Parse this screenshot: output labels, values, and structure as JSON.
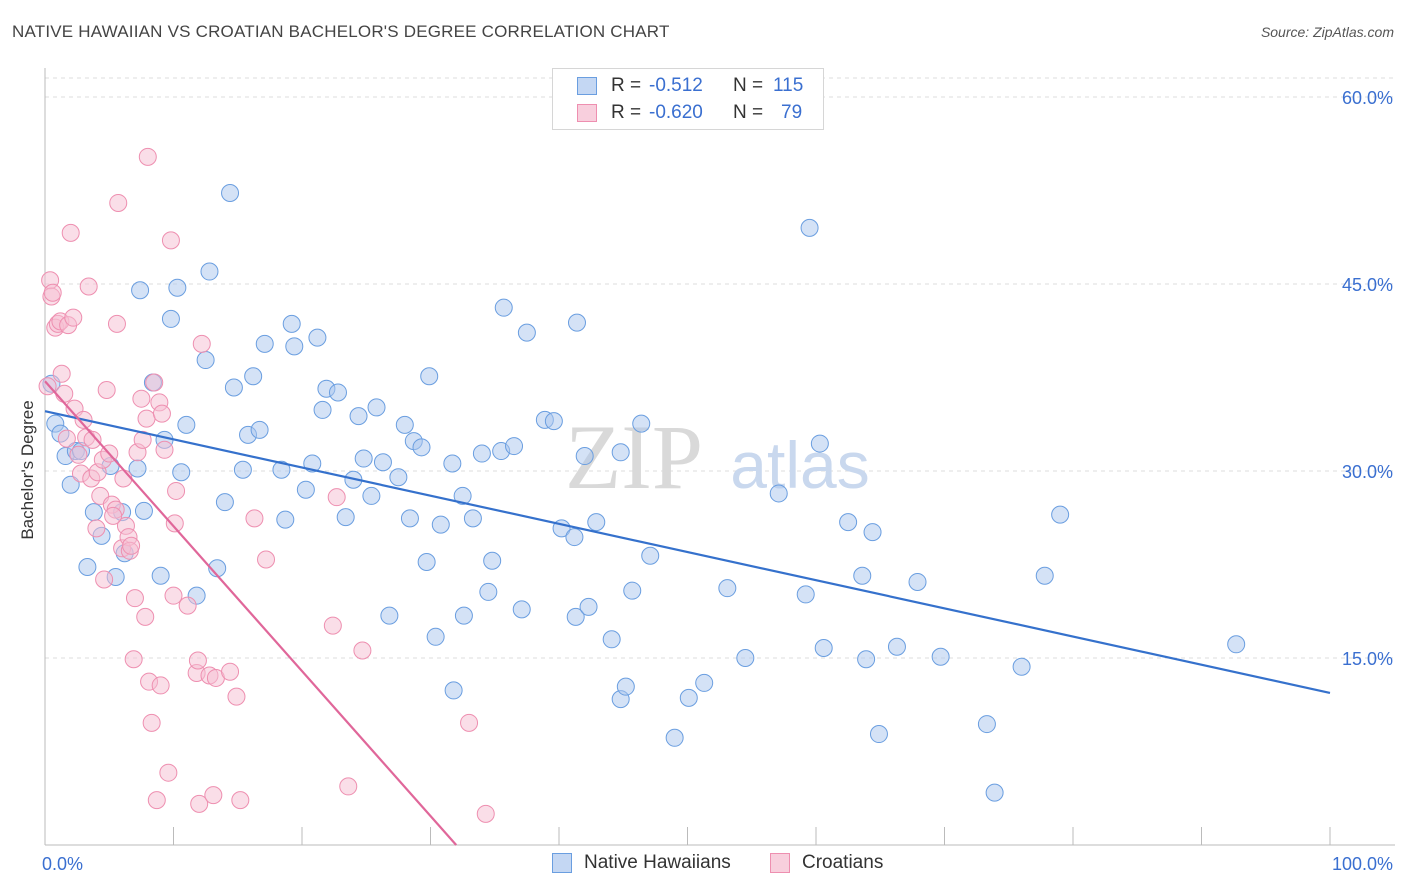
{
  "chart_data": {
    "type": "scatter",
    "title": "NATIVE HAWAIIAN VS CROATIAN BACHELOR'S DEGREE CORRELATION CHART",
    "source": "Source: ZipAtlas.com",
    "xlabel": "",
    "ylabel": "Bachelor's Degree",
    "xlim": [
      0,
      100
    ],
    "ylim": [
      0,
      60
    ],
    "x_tick_labels": [
      "0.0%",
      "100.0%"
    ],
    "y_ticks": [
      15,
      30,
      45,
      60
    ],
    "y_tick_labels": [
      "15.0%",
      "30.0%",
      "45.0%",
      "60.0%"
    ],
    "grid": true,
    "legend_position": "top-center",
    "watermark": "ZIPatlas",
    "series": [
      {
        "name": "Native Hawaiians",
        "color": "#6a9ee0",
        "fill": "#a9c6ee",
        "line_color": "#3571cc",
        "R": "-0.512",
        "N": "115",
        "trend": {
          "x0": 0,
          "y0": 34.8,
          "x1": 100,
          "y1": 12.2
        },
        "points": [
          [
            0.5,
            37.0
          ],
          [
            0.8,
            33.8
          ],
          [
            1.2,
            33.0
          ],
          [
            1.6,
            31.2
          ],
          [
            2.0,
            28.9
          ],
          [
            2.4,
            31.6
          ],
          [
            2.8,
            31.6
          ],
          [
            3.3,
            22.3
          ],
          [
            3.8,
            26.7
          ],
          [
            4.4,
            24.8
          ],
          [
            5.1,
            30.4
          ],
          [
            5.5,
            21.5
          ],
          [
            6.0,
            26.7
          ],
          [
            6.2,
            23.4
          ],
          [
            7.4,
            44.5
          ],
          [
            7.2,
            30.2
          ],
          [
            7.7,
            26.8
          ],
          [
            8.4,
            37.1
          ],
          [
            9.0,
            21.6
          ],
          [
            9.3,
            32.5
          ],
          [
            9.8,
            42.2
          ],
          [
            10.3,
            44.7
          ],
          [
            10.6,
            29.9
          ],
          [
            11.0,
            33.7
          ],
          [
            11.8,
            20.0
          ],
          [
            12.5,
            38.9
          ],
          [
            12.8,
            46.0
          ],
          [
            13.4,
            22.2
          ],
          [
            14.0,
            27.5
          ],
          [
            14.4,
            52.3
          ],
          [
            14.7,
            36.7
          ],
          [
            15.4,
            30.1
          ],
          [
            15.8,
            32.9
          ],
          [
            16.2,
            37.6
          ],
          [
            16.7,
            33.3
          ],
          [
            17.1,
            40.2
          ],
          [
            18.4,
            30.1
          ],
          [
            18.7,
            26.1
          ],
          [
            19.2,
            41.8
          ],
          [
            19.4,
            40.0
          ],
          [
            20.3,
            28.5
          ],
          [
            20.8,
            30.6
          ],
          [
            21.2,
            40.7
          ],
          [
            21.6,
            34.9
          ],
          [
            21.9,
            36.6
          ],
          [
            22.8,
            36.3
          ],
          [
            23.4,
            26.3
          ],
          [
            24.0,
            29.3
          ],
          [
            24.4,
            34.4
          ],
          [
            24.8,
            31.0
          ],
          [
            25.4,
            28.0
          ],
          [
            25.8,
            35.1
          ],
          [
            26.3,
            30.7
          ],
          [
            26.8,
            18.4
          ],
          [
            27.5,
            29.5
          ],
          [
            28.0,
            33.7
          ],
          [
            28.4,
            26.2
          ],
          [
            28.7,
            32.4
          ],
          [
            29.3,
            31.9
          ],
          [
            29.7,
            22.7
          ],
          [
            29.9,
            37.6
          ],
          [
            30.4,
            16.7
          ],
          [
            30.8,
            25.7
          ],
          [
            31.7,
            30.6
          ],
          [
            31.8,
            12.4
          ],
          [
            32.5,
            28.0
          ],
          [
            32.6,
            18.4
          ],
          [
            33.3,
            26.2
          ],
          [
            34.0,
            31.4
          ],
          [
            34.5,
            20.3
          ],
          [
            34.8,
            22.8
          ],
          [
            35.5,
            31.6
          ],
          [
            35.7,
            43.1
          ],
          [
            36.5,
            32.0
          ],
          [
            37.1,
            18.9
          ],
          [
            37.5,
            41.1
          ],
          [
            38.9,
            34.1
          ],
          [
            39.6,
            34.0
          ],
          [
            40.2,
            25.4
          ],
          [
            41.2,
            24.7
          ],
          [
            41.3,
            18.3
          ],
          [
            41.4,
            41.9
          ],
          [
            42.0,
            31.2
          ],
          [
            42.3,
            19.1
          ],
          [
            42.9,
            25.9
          ],
          [
            44.1,
            16.5
          ],
          [
            44.8,
            31.5
          ],
          [
            44.8,
            11.7
          ],
          [
            45.2,
            12.7
          ],
          [
            45.7,
            20.4
          ],
          [
            46.4,
            33.8
          ],
          [
            47.1,
            23.2
          ],
          [
            49.0,
            8.6
          ],
          [
            50.1,
            11.8
          ],
          [
            51.3,
            13.0
          ],
          [
            53.1,
            20.6
          ],
          [
            54.5,
            15.0
          ],
          [
            57.1,
            28.2
          ],
          [
            59.2,
            20.1
          ],
          [
            59.5,
            49.5
          ],
          [
            60.3,
            32.2
          ],
          [
            60.6,
            15.8
          ],
          [
            62.5,
            25.9
          ],
          [
            63.6,
            21.6
          ],
          [
            63.9,
            14.9
          ],
          [
            64.4,
            25.1
          ],
          [
            64.9,
            8.9
          ],
          [
            66.3,
            15.9
          ],
          [
            67.9,
            21.1
          ],
          [
            69.7,
            15.1
          ],
          [
            73.3,
            9.7
          ],
          [
            73.9,
            4.2
          ],
          [
            76.0,
            14.3
          ],
          [
            77.8,
            21.6
          ],
          [
            79.0,
            26.5
          ],
          [
            92.7,
            16.1
          ]
        ]
      },
      {
        "name": "Croatians",
        "color": "#ee8fb0",
        "fill": "#f6bdd1",
        "line_color": "#e0679a",
        "R": "-0.620",
        "N": "79",
        "trend": {
          "x0": 0,
          "y0": 37.2,
          "x1": 32,
          "y1": 0
        },
        "points": [
          [
            0.2,
            36.8
          ],
          [
            0.4,
            45.3
          ],
          [
            0.5,
            44.0
          ],
          [
            0.6,
            44.3
          ],
          [
            0.8,
            41.5
          ],
          [
            1.0,
            41.8
          ],
          [
            1.2,
            42.0
          ],
          [
            1.3,
            37.8
          ],
          [
            1.5,
            36.2
          ],
          [
            1.8,
            41.7
          ],
          [
            2.0,
            49.1
          ],
          [
            2.2,
            42.3
          ],
          [
            2.3,
            35.0
          ],
          [
            2.6,
            31.3
          ],
          [
            2.8,
            29.8
          ],
          [
            3.0,
            34.1
          ],
          [
            3.2,
            32.7
          ],
          [
            3.4,
            44.8
          ],
          [
            3.6,
            29.4
          ],
          [
            3.7,
            32.5
          ],
          [
            4.0,
            25.4
          ],
          [
            4.1,
            29.9
          ],
          [
            4.3,
            28.0
          ],
          [
            4.5,
            30.9
          ],
          [
            4.6,
            21.3
          ],
          [
            4.8,
            36.5
          ],
          [
            5.0,
            31.4
          ],
          [
            5.2,
            27.3
          ],
          [
            5.5,
            26.9
          ],
          [
            5.6,
            41.8
          ],
          [
            5.7,
            51.5
          ],
          [
            6.0,
            23.8
          ],
          [
            6.1,
            29.4
          ],
          [
            6.3,
            25.6
          ],
          [
            6.5,
            24.7
          ],
          [
            6.6,
            23.6
          ],
          [
            6.7,
            24.0
          ],
          [
            6.9,
            14.9
          ],
          [
            7.0,
            19.8
          ],
          [
            7.2,
            31.5
          ],
          [
            7.5,
            35.8
          ],
          [
            7.6,
            32.5
          ],
          [
            7.8,
            18.3
          ],
          [
            7.9,
            34.2
          ],
          [
            8.0,
            55.2
          ],
          [
            8.1,
            13.1
          ],
          [
            8.3,
            9.8
          ],
          [
            8.5,
            37.1
          ],
          [
            8.7,
            3.6
          ],
          [
            8.9,
            35.5
          ],
          [
            9.0,
            12.8
          ],
          [
            9.1,
            34.6
          ],
          [
            9.3,
            31.7
          ],
          [
            9.6,
            5.8
          ],
          [
            9.8,
            48.5
          ],
          [
            10.0,
            20.0
          ],
          [
            10.2,
            28.4
          ],
          [
            11.1,
            19.2
          ],
          [
            11.8,
            13.8
          ],
          [
            11.9,
            14.8
          ],
          [
            12.0,
            3.3
          ],
          [
            12.2,
            40.2
          ],
          [
            12.8,
            13.6
          ],
          [
            13.1,
            4.0
          ],
          [
            13.3,
            13.4
          ],
          [
            14.4,
            13.9
          ],
          [
            14.9,
            11.9
          ],
          [
            15.2,
            3.6
          ],
          [
            16.3,
            26.2
          ],
          [
            17.2,
            22.9
          ],
          [
            22.4,
            17.6
          ],
          [
            22.7,
            27.9
          ],
          [
            23.6,
            4.7
          ],
          [
            24.7,
            15.6
          ],
          [
            33.0,
            9.8
          ],
          [
            34.3,
            2.5
          ],
          [
            10.1,
            25.8
          ],
          [
            5.3,
            26.4
          ],
          [
            1.7,
            32.6
          ]
        ]
      }
    ]
  },
  "legend": {
    "rows": [
      {
        "r_label": "R =",
        "r_value": "-0.512",
        "n_label": "N =",
        "n_value": "115"
      },
      {
        "r_label": "R =",
        "r_value": "-0.620",
        "n_label": "N =",
        "n_value": "79"
      }
    ],
    "bottom": [
      "Native Hawaiians",
      "Croatians"
    ]
  }
}
